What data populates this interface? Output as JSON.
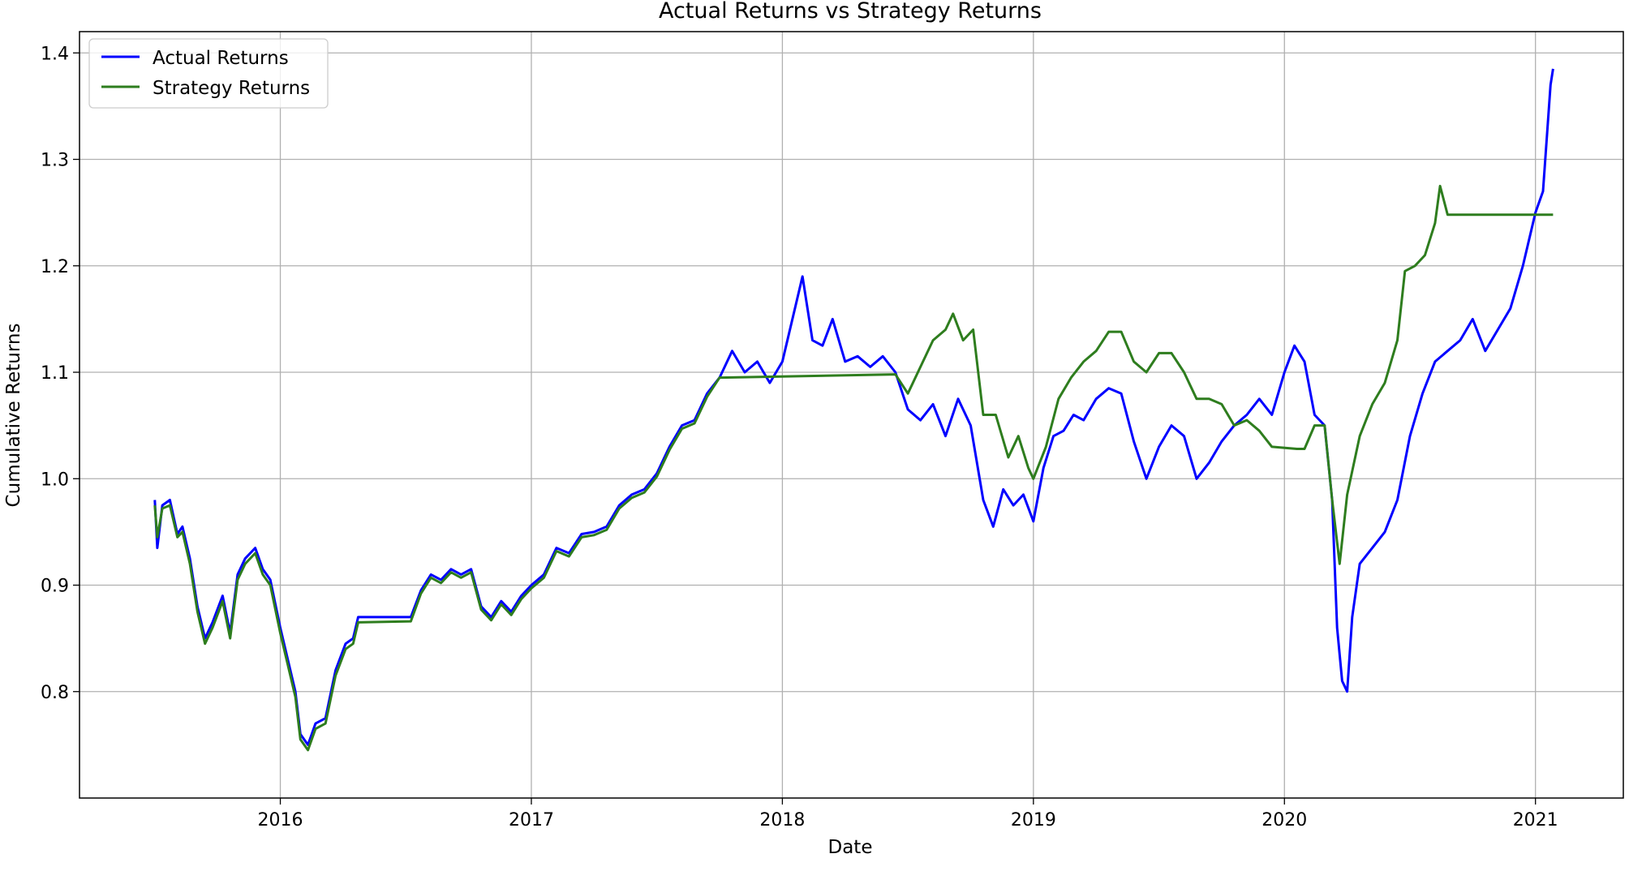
{
  "chart_data": {
    "type": "line",
    "title": "Actual Returns vs Strategy Returns",
    "xlabel": "Date",
    "ylabel": "Cumulative Returns",
    "xlim": [
      2015.2,
      2021.35
    ],
    "ylim": [
      0.7,
      1.42
    ],
    "grid": true,
    "legend_position": "top-left",
    "x_ticks": [
      {
        "value": 2016,
        "label": "2016"
      },
      {
        "value": 2017,
        "label": "2017"
      },
      {
        "value": 2018,
        "label": "2018"
      },
      {
        "value": 2019,
        "label": "2019"
      },
      {
        "value": 2020,
        "label": "2020"
      },
      {
        "value": 2021,
        "label": "2021"
      }
    ],
    "y_ticks": [
      {
        "value": 0.8,
        "label": "0.8"
      },
      {
        "value": 0.9,
        "label": "0.9"
      },
      {
        "value": 1.0,
        "label": "1.0"
      },
      {
        "value": 1.1,
        "label": "1.1"
      },
      {
        "value": 1.2,
        "label": "1.2"
      },
      {
        "value": 1.3,
        "label": "1.3"
      },
      {
        "value": 1.4,
        "label": "1.4"
      }
    ],
    "series": [
      {
        "name": "Actual Returns",
        "color": "#0000ff",
        "points": [
          [
            2015.5,
            0.98
          ],
          [
            2015.51,
            0.935
          ],
          [
            2015.53,
            0.975
          ],
          [
            2015.56,
            0.98
          ],
          [
            2015.59,
            0.948
          ],
          [
            2015.61,
            0.955
          ],
          [
            2015.64,
            0.925
          ],
          [
            2015.67,
            0.88
          ],
          [
            2015.7,
            0.85
          ],
          [
            2015.73,
            0.865
          ],
          [
            2015.77,
            0.89
          ],
          [
            2015.8,
            0.855
          ],
          [
            2015.83,
            0.91
          ],
          [
            2015.86,
            0.925
          ],
          [
            2015.9,
            0.935
          ],
          [
            2015.93,
            0.915
          ],
          [
            2015.96,
            0.905
          ],
          [
            2016.0,
            0.86
          ],
          [
            2016.03,
            0.83
          ],
          [
            2016.06,
            0.8
          ],
          [
            2016.08,
            0.76
          ],
          [
            2016.11,
            0.75
          ],
          [
            2016.14,
            0.77
          ],
          [
            2016.18,
            0.775
          ],
          [
            2016.22,
            0.82
          ],
          [
            2016.26,
            0.845
          ],
          [
            2016.29,
            0.85
          ],
          [
            2016.31,
            0.87
          ],
          [
            2016.52,
            0.87
          ],
          [
            2016.56,
            0.895
          ],
          [
            2016.6,
            0.91
          ],
          [
            2016.64,
            0.905
          ],
          [
            2016.68,
            0.915
          ],
          [
            2016.72,
            0.91
          ],
          [
            2016.76,
            0.915
          ],
          [
            2016.8,
            0.88
          ],
          [
            2016.84,
            0.87
          ],
          [
            2016.88,
            0.885
          ],
          [
            2016.92,
            0.875
          ],
          [
            2016.96,
            0.89
          ],
          [
            2017.0,
            0.9
          ],
          [
            2017.05,
            0.91
          ],
          [
            2017.1,
            0.935
          ],
          [
            2017.15,
            0.93
          ],
          [
            2017.2,
            0.948
          ],
          [
            2017.25,
            0.95
          ],
          [
            2017.3,
            0.955
          ],
          [
            2017.35,
            0.975
          ],
          [
            2017.4,
            0.985
          ],
          [
            2017.45,
            0.99
          ],
          [
            2017.5,
            1.005
          ],
          [
            2017.55,
            1.03
          ],
          [
            2017.6,
            1.05
          ],
          [
            2017.65,
            1.055
          ],
          [
            2017.7,
            1.08
          ],
          [
            2017.75,
            1.095
          ],
          [
            2017.8,
            1.12
          ],
          [
            2017.85,
            1.1
          ],
          [
            2017.9,
            1.11
          ],
          [
            2017.95,
            1.09
          ],
          [
            2018.0,
            1.11
          ],
          [
            2018.04,
            1.15
          ],
          [
            2018.08,
            1.19
          ],
          [
            2018.12,
            1.13
          ],
          [
            2018.16,
            1.125
          ],
          [
            2018.2,
            1.15
          ],
          [
            2018.25,
            1.11
          ],
          [
            2018.3,
            1.115
          ],
          [
            2018.35,
            1.105
          ],
          [
            2018.4,
            1.115
          ],
          [
            2018.45,
            1.1
          ],
          [
            2018.5,
            1.065
          ],
          [
            2018.55,
            1.055
          ],
          [
            2018.6,
            1.07
          ],
          [
            2018.65,
            1.04
          ],
          [
            2018.7,
            1.075
          ],
          [
            2018.75,
            1.05
          ],
          [
            2018.8,
            0.98
          ],
          [
            2018.84,
            0.955
          ],
          [
            2018.88,
            0.99
          ],
          [
            2018.92,
            0.975
          ],
          [
            2018.96,
            0.985
          ],
          [
            2019.0,
            0.96
          ],
          [
            2019.04,
            1.01
          ],
          [
            2019.08,
            1.04
          ],
          [
            2019.12,
            1.045
          ],
          [
            2019.16,
            1.06
          ],
          [
            2019.2,
            1.055
          ],
          [
            2019.25,
            1.075
          ],
          [
            2019.3,
            1.085
          ],
          [
            2019.35,
            1.08
          ],
          [
            2019.4,
            1.035
          ],
          [
            2019.45,
            1.0
          ],
          [
            2019.5,
            1.03
          ],
          [
            2019.55,
            1.05
          ],
          [
            2019.6,
            1.04
          ],
          [
            2019.65,
            1.0
          ],
          [
            2019.7,
            1.015
          ],
          [
            2019.75,
            1.035
          ],
          [
            2019.8,
            1.05
          ],
          [
            2019.85,
            1.06
          ],
          [
            2019.9,
            1.075
          ],
          [
            2019.95,
            1.06
          ],
          [
            2020.0,
            1.1
          ],
          [
            2020.04,
            1.125
          ],
          [
            2020.08,
            1.11
          ],
          [
            2020.12,
            1.06
          ],
          [
            2020.16,
            1.05
          ],
          [
            2020.19,
            0.98
          ],
          [
            2020.21,
            0.86
          ],
          [
            2020.23,
            0.81
          ],
          [
            2020.25,
            0.8
          ],
          [
            2020.27,
            0.87
          ],
          [
            2020.3,
            0.92
          ],
          [
            2020.35,
            0.935
          ],
          [
            2020.4,
            0.95
          ],
          [
            2020.45,
            0.98
          ],
          [
            2020.5,
            1.04
          ],
          [
            2020.55,
            1.08
          ],
          [
            2020.6,
            1.11
          ],
          [
            2020.65,
            1.12
          ],
          [
            2020.7,
            1.13
          ],
          [
            2020.75,
            1.15
          ],
          [
            2020.8,
            1.12
          ],
          [
            2020.85,
            1.14
          ],
          [
            2020.9,
            1.16
          ],
          [
            2020.95,
            1.2
          ],
          [
            2021.0,
            1.25
          ],
          [
            2021.03,
            1.27
          ],
          [
            2021.06,
            1.37
          ],
          [
            2021.07,
            1.385
          ]
        ]
      },
      {
        "name": "Strategy Returns",
        "color": "#2e7d1e",
        "points": [
          [
            2015.5,
            0.975
          ],
          [
            2015.51,
            0.945
          ],
          [
            2015.53,
            0.972
          ],
          [
            2015.56,
            0.975
          ],
          [
            2015.59,
            0.945
          ],
          [
            2015.61,
            0.95
          ],
          [
            2015.64,
            0.92
          ],
          [
            2015.67,
            0.875
          ],
          [
            2015.7,
            0.845
          ],
          [
            2015.73,
            0.86
          ],
          [
            2015.77,
            0.885
          ],
          [
            2015.8,
            0.85
          ],
          [
            2015.83,
            0.905
          ],
          [
            2015.86,
            0.92
          ],
          [
            2015.9,
            0.93
          ],
          [
            2015.93,
            0.91
          ],
          [
            2015.96,
            0.9
          ],
          [
            2016.0,
            0.855
          ],
          [
            2016.03,
            0.825
          ],
          [
            2016.06,
            0.795
          ],
          [
            2016.08,
            0.755
          ],
          [
            2016.11,
            0.745
          ],
          [
            2016.14,
            0.765
          ],
          [
            2016.18,
            0.77
          ],
          [
            2016.22,
            0.815
          ],
          [
            2016.26,
            0.84
          ],
          [
            2016.29,
            0.845
          ],
          [
            2016.31,
            0.865
          ],
          [
            2016.52,
            0.866
          ],
          [
            2016.56,
            0.892
          ],
          [
            2016.6,
            0.907
          ],
          [
            2016.64,
            0.902
          ],
          [
            2016.68,
            0.912
          ],
          [
            2016.72,
            0.907
          ],
          [
            2016.76,
            0.912
          ],
          [
            2016.8,
            0.877
          ],
          [
            2016.84,
            0.867
          ],
          [
            2016.88,
            0.882
          ],
          [
            2016.92,
            0.872
          ],
          [
            2016.96,
            0.887
          ],
          [
            2017.0,
            0.897
          ],
          [
            2017.05,
            0.907
          ],
          [
            2017.1,
            0.932
          ],
          [
            2017.15,
            0.927
          ],
          [
            2017.2,
            0.945
          ],
          [
            2017.25,
            0.947
          ],
          [
            2017.3,
            0.952
          ],
          [
            2017.35,
            0.972
          ],
          [
            2017.4,
            0.982
          ],
          [
            2017.45,
            0.987
          ],
          [
            2017.5,
            1.002
          ],
          [
            2017.55,
            1.027
          ],
          [
            2017.6,
            1.047
          ],
          [
            2017.65,
            1.052
          ],
          [
            2017.7,
            1.077
          ],
          [
            2017.75,
            1.095
          ],
          [
            2018.45,
            1.098
          ],
          [
            2018.5,
            1.08
          ],
          [
            2018.55,
            1.105
          ],
          [
            2018.6,
            1.13
          ],
          [
            2018.65,
            1.14
          ],
          [
            2018.68,
            1.155
          ],
          [
            2018.72,
            1.13
          ],
          [
            2018.76,
            1.14
          ],
          [
            2018.8,
            1.06
          ],
          [
            2018.85,
            1.06
          ],
          [
            2018.9,
            1.02
          ],
          [
            2018.94,
            1.04
          ],
          [
            2018.98,
            1.01
          ],
          [
            2019.0,
            1.0
          ],
          [
            2019.05,
            1.03
          ],
          [
            2019.1,
            1.075
          ],
          [
            2019.15,
            1.095
          ],
          [
            2019.2,
            1.11
          ],
          [
            2019.25,
            1.12
          ],
          [
            2019.3,
            1.138
          ],
          [
            2019.35,
            1.138
          ],
          [
            2019.4,
            1.11
          ],
          [
            2019.45,
            1.1
          ],
          [
            2019.5,
            1.118
          ],
          [
            2019.55,
            1.118
          ],
          [
            2019.6,
            1.1
          ],
          [
            2019.65,
            1.075
          ],
          [
            2019.7,
            1.075
          ],
          [
            2019.75,
            1.07
          ],
          [
            2019.8,
            1.05
          ],
          [
            2019.85,
            1.055
          ],
          [
            2019.9,
            1.045
          ],
          [
            2019.95,
            1.03
          ],
          [
            2020.05,
            1.028
          ],
          [
            2020.08,
            1.028
          ],
          [
            2020.12,
            1.05
          ],
          [
            2020.16,
            1.05
          ],
          [
            2020.19,
            0.98
          ],
          [
            2020.22,
            0.92
          ],
          [
            2020.25,
            0.985
          ],
          [
            2020.3,
            1.04
          ],
          [
            2020.35,
            1.07
          ],
          [
            2020.4,
            1.09
          ],
          [
            2020.45,
            1.13
          ],
          [
            2020.48,
            1.195
          ],
          [
            2020.52,
            1.2
          ],
          [
            2020.56,
            1.21
          ],
          [
            2020.6,
            1.24
          ],
          [
            2020.62,
            1.275
          ],
          [
            2020.65,
            1.248
          ],
          [
            2021.07,
            1.248
          ]
        ]
      }
    ]
  }
}
